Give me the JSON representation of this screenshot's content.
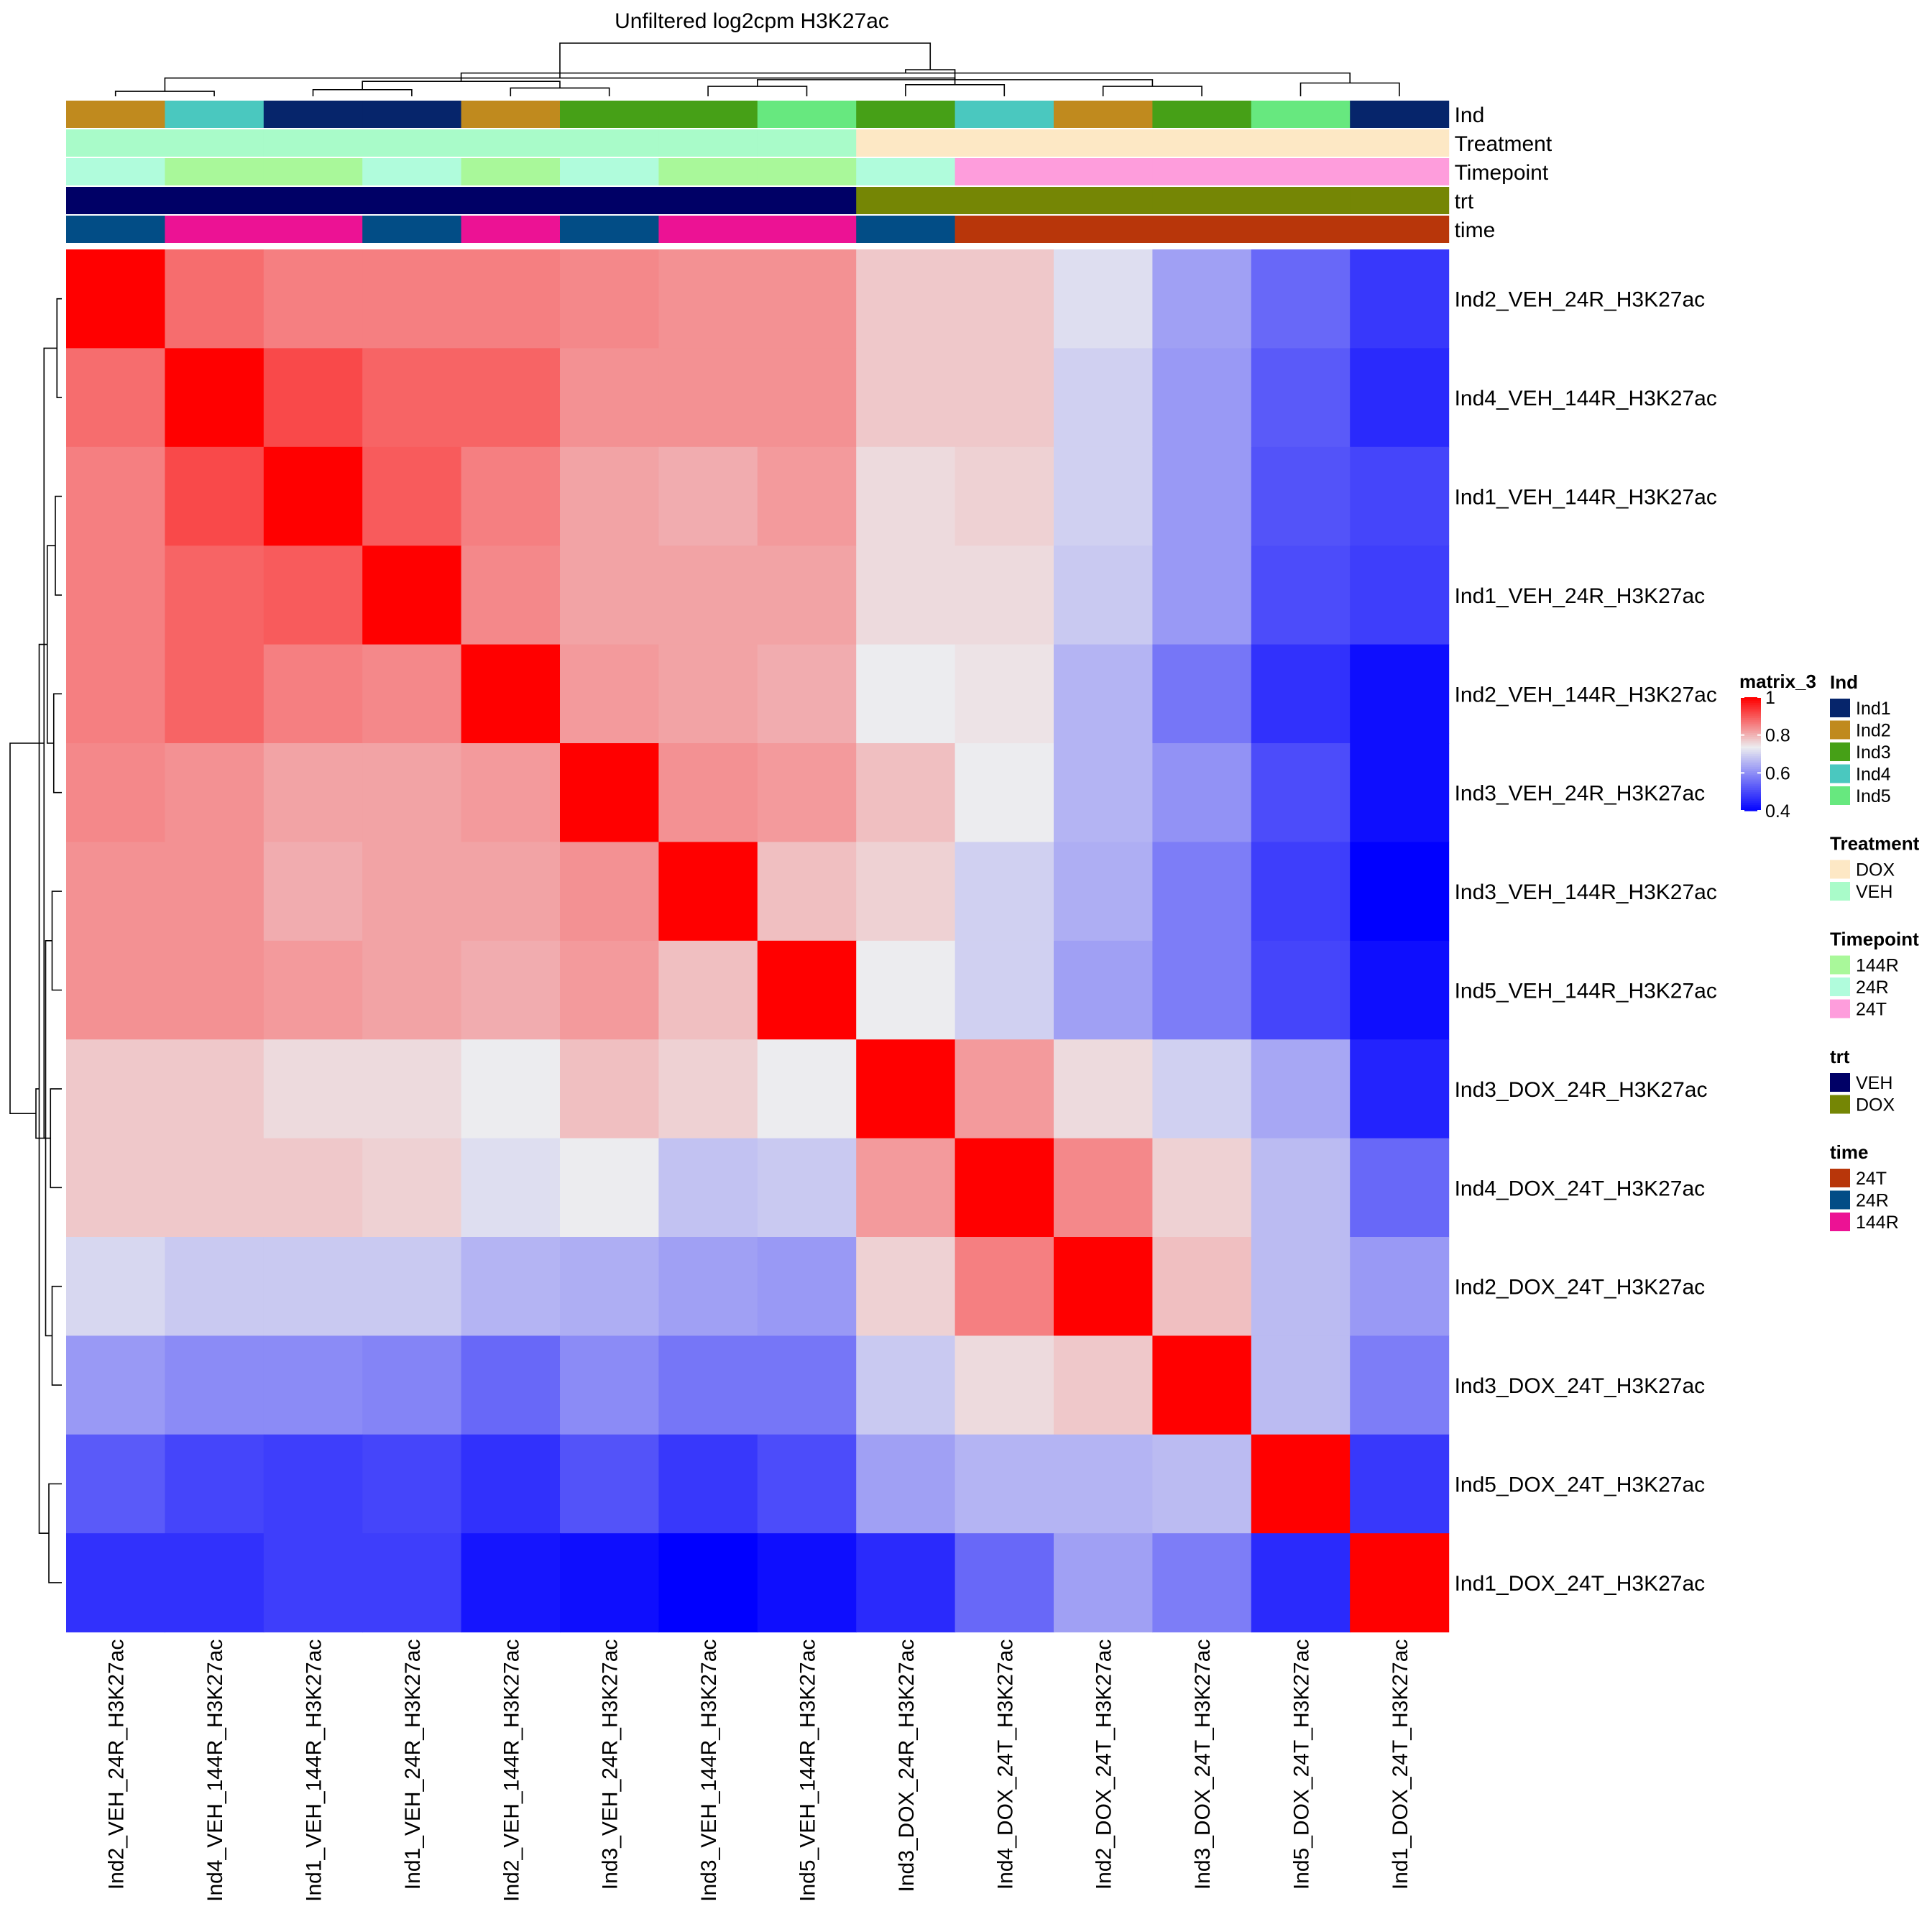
{
  "chart_data": {
    "type": "heatmap",
    "title": "Unfiltered log2cpm H3K27ac",
    "samples": [
      "Ind2_VEH_24R_H3K27ac",
      "Ind4_VEH_144R_H3K27ac",
      "Ind1_VEH_144R_H3K27ac",
      "Ind1_VEH_24R_H3K27ac",
      "Ind2_VEH_144R_H3K27ac",
      "Ind3_VEH_24R_H3K27ac",
      "Ind3_VEH_144R_H3K27ac",
      "Ind5_VEH_144R_H3K27ac",
      "Ind3_DOX_24R_H3K27ac",
      "Ind4_DOX_24T_H3K27ac",
      "Ind2_DOX_24T_H3K27ac",
      "Ind3_DOX_24T_H3K27ac",
      "Ind5_DOX_24T_H3K27ac",
      "Ind1_DOX_24T_H3K27ac"
    ],
    "matrix": [
      [
        1.0,
        0.88,
        0.86,
        0.86,
        0.86,
        0.85,
        0.84,
        0.84,
        0.78,
        0.78,
        0.72,
        0.63,
        0.55,
        0.48
      ],
      [
        0.88,
        1.0,
        0.92,
        0.89,
        0.89,
        0.84,
        0.84,
        0.84,
        0.78,
        0.78,
        0.7,
        0.62,
        0.53,
        0.46
      ],
      [
        0.86,
        0.92,
        1.0,
        0.9,
        0.86,
        0.82,
        0.81,
        0.83,
        0.76,
        0.77,
        0.7,
        0.62,
        0.52,
        0.5
      ],
      [
        0.86,
        0.89,
        0.9,
        1.0,
        0.85,
        0.82,
        0.82,
        0.82,
        0.76,
        0.76,
        0.69,
        0.62,
        0.51,
        0.49
      ],
      [
        0.86,
        0.89,
        0.86,
        0.85,
        1.0,
        0.83,
        0.82,
        0.81,
        0.74,
        0.75,
        0.66,
        0.57,
        0.47,
        0.42
      ],
      [
        0.85,
        0.84,
        0.82,
        0.82,
        0.83,
        1.0,
        0.84,
        0.83,
        0.79,
        0.74,
        0.66,
        0.61,
        0.51,
        0.42
      ],
      [
        0.84,
        0.84,
        0.81,
        0.82,
        0.82,
        0.84,
        1.0,
        0.79,
        0.77,
        0.7,
        0.65,
        0.58,
        0.49,
        0.4
      ],
      [
        0.84,
        0.84,
        0.83,
        0.82,
        0.81,
        0.83,
        0.79,
        1.0,
        0.74,
        0.7,
        0.63,
        0.58,
        0.5,
        0.42
      ],
      [
        0.78,
        0.78,
        0.76,
        0.76,
        0.74,
        0.79,
        0.77,
        0.74,
        1.0,
        0.83,
        0.76,
        0.7,
        0.64,
        0.45
      ],
      [
        0.78,
        0.78,
        0.78,
        0.77,
        0.72,
        0.74,
        0.68,
        0.69,
        0.83,
        1.0,
        0.85,
        0.77,
        0.67,
        0.55
      ],
      [
        0.71,
        0.69,
        0.69,
        0.69,
        0.66,
        0.65,
        0.63,
        0.62,
        0.77,
        0.86,
        1.0,
        0.79,
        0.67,
        0.62
      ],
      [
        0.62,
        0.6,
        0.6,
        0.59,
        0.55,
        0.6,
        0.57,
        0.57,
        0.69,
        0.76,
        0.78,
        1.0,
        0.67,
        0.58
      ],
      [
        0.53,
        0.5,
        0.49,
        0.5,
        0.47,
        0.52,
        0.48,
        0.51,
        0.63,
        0.66,
        0.66,
        0.67,
        1.0,
        0.48
      ],
      [
        0.47,
        0.47,
        0.49,
        0.49,
        0.43,
        0.42,
        0.4,
        0.42,
        0.46,
        0.55,
        0.63,
        0.58,
        0.46,
        1.0
      ]
    ],
    "colorscale": {
      "name": "matrix_3",
      "stops": [
        {
          "value": 0.4,
          "color": "#0000ff"
        },
        {
          "value": 0.74,
          "color": "#ececef"
        },
        {
          "value": 1.0,
          "color": "#ff0000"
        }
      ],
      "ticks": [
        "1",
        "0.8",
        "0.6",
        "0.4"
      ],
      "tick_values": [
        1.0,
        0.8,
        0.6,
        0.4
      ]
    },
    "annotations": [
      {
        "name": "Ind",
        "values": [
          "Ind2",
          "Ind4",
          "Ind1",
          "Ind1",
          "Ind2",
          "Ind3",
          "Ind3",
          "Ind5",
          "Ind3",
          "Ind4",
          "Ind2",
          "Ind3",
          "Ind5",
          "Ind1"
        ]
      },
      {
        "name": "Treatment",
        "values": [
          "VEH",
          "VEH",
          "VEH",
          "VEH",
          "VEH",
          "VEH",
          "VEH",
          "VEH",
          "DOX",
          "DOX",
          "DOX",
          "DOX",
          "DOX",
          "DOX"
        ]
      },
      {
        "name": "Timepoint",
        "values": [
          "24R",
          "144R",
          "144R",
          "24R",
          "144R",
          "24R",
          "144R",
          "144R",
          "24R",
          "24T",
          "24T",
          "24T",
          "24T",
          "24T"
        ]
      },
      {
        "name": "trt",
        "values": [
          "VEH",
          "VEH",
          "VEH",
          "VEH",
          "VEH",
          "VEH",
          "VEH",
          "VEH",
          "DOX",
          "DOX",
          "DOX",
          "DOX",
          "DOX",
          "DOX"
        ]
      },
      {
        "name": "time",
        "values": [
          "24R",
          "144R",
          "144R",
          "24R",
          "144R",
          "24R",
          "144R",
          "144R",
          "24R",
          "24T",
          "24T",
          "24T",
          "24T",
          "24T"
        ]
      }
    ],
    "legends": [
      {
        "title": "Ind",
        "items": [
          {
            "label": "Ind1",
            "color": "#06256b"
          },
          {
            "label": "Ind2",
            "color": "#c08a1e"
          },
          {
            "label": "Ind3",
            "color": "#46a017"
          },
          {
            "label": "Ind4",
            "color": "#4ac8bf"
          },
          {
            "label": "Ind5",
            "color": "#67e87f"
          }
        ]
      },
      {
        "title": "Treatment",
        "items": [
          {
            "label": "DOX",
            "color": "#fde8c5"
          },
          {
            "label": "VEH",
            "color": "#a9fbc9"
          }
        ]
      },
      {
        "title": "Timepoint",
        "items": [
          {
            "label": "144R",
            "color": "#a9f89a"
          },
          {
            "label": "24R",
            "color": "#b0fcdc"
          },
          {
            "label": "24T",
            "color": "#fe9ddc"
          }
        ]
      },
      {
        "title": "trt",
        "items": [
          {
            "label": "VEH",
            "color": "#000066"
          },
          {
            "label": "DOX",
            "color": "#758605"
          }
        ]
      },
      {
        "title": "time",
        "items": [
          {
            "label": "24T",
            "color": "#b8360a"
          },
          {
            "label": "24R",
            "color": "#024d86"
          },
          {
            "label": "144R",
            "color": "#ec1294"
          }
        ]
      }
    ],
    "dendrogram": {
      "merges": [
        [
          -1,
          -2,
          0.03
        ],
        [
          -3,
          -4,
          0.04
        ],
        [
          -5,
          -6,
          0.05
        ],
        [
          -7,
          -8,
          0.06
        ],
        [
          -11,
          -12,
          0.06
        ],
        [
          -9,
          -10,
          0.07
        ],
        [
          -13,
          -14,
          0.08
        ],
        [
          2,
          3,
          0.09
        ],
        [
          5,
          4,
          0.1
        ],
        [
          6,
          1,
          0.11
        ],
        [
          8,
          7,
          0.14
        ],
        [
          11,
          9,
          0.16
        ],
        [
          12,
          10,
          0.32
        ]
      ]
    }
  }
}
